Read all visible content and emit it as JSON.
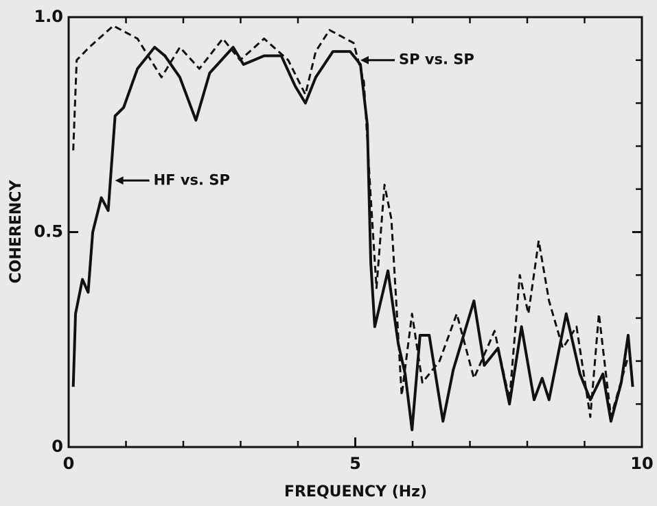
{
  "chart_data": {
    "type": "line",
    "xlabel": "FREQUENCY (Hz)",
    "ylabel": "COHERENCY",
    "xlim": [
      0,
      10
    ],
    "ylim": [
      0,
      1
    ],
    "xticks": [
      0,
      5,
      10
    ],
    "yticks": [
      0,
      0.5,
      {
        "value": 1,
        "label": "1.0"
      }
    ],
    "xminorticks": [
      1,
      2,
      3,
      4,
      6,
      7,
      8,
      9
    ],
    "yminorticks": [
      0.1,
      0.2,
      0.3,
      0.4,
      0.6,
      0.7,
      0.8,
      0.9
    ],
    "series": [
      {
        "name": "HF vs. SP",
        "color": "#111111",
        "dash": "solid",
        "x": [
          0.08,
          0.12,
          0.24,
          0.34,
          0.42,
          0.57,
          0.69,
          0.81,
          0.96,
          1.2,
          1.5,
          1.68,
          1.94,
          2.22,
          2.46,
          2.87,
          3.05,
          3.41,
          3.71,
          3.95,
          4.13,
          4.31,
          4.61,
          4.91,
          5.09,
          5.21,
          5.27,
          5.34,
          5.57,
          5.75,
          5.87,
          5.99,
          6.13,
          6.29,
          6.53,
          6.71,
          7.07,
          7.25,
          7.49,
          7.69,
          7.9,
          8.12,
          8.26,
          8.38,
          8.68,
          8.92,
          9.1,
          9.32,
          9.46,
          9.64,
          9.76,
          9.84
        ],
        "values": [
          0.14,
          0.31,
          0.39,
          0.36,
          0.5,
          0.58,
          0.55,
          0.77,
          0.79,
          0.88,
          0.93,
          0.91,
          0.86,
          0.76,
          0.87,
          0.93,
          0.89,
          0.91,
          0.91,
          0.84,
          0.8,
          0.86,
          0.92,
          0.92,
          0.89,
          0.75,
          0.43,
          0.28,
          0.41,
          0.24,
          0.17,
          0.04,
          0.26,
          0.26,
          0.06,
          0.18,
          0.34,
          0.19,
          0.23,
          0.1,
          0.28,
          0.11,
          0.16,
          0.11,
          0.31,
          0.17,
          0.11,
          0.17,
          0.06,
          0.15,
          0.26,
          0.14
        ]
      },
      {
        "name": "SP vs. SP",
        "color": "#111111",
        "dash": "dashed",
        "x": [
          0.08,
          0.14,
          0.36,
          0.78,
          1.2,
          1.62,
          1.94,
          2.28,
          2.69,
          2.99,
          3.41,
          3.83,
          4.13,
          4.31,
          4.55,
          4.97,
          5.15,
          5.27,
          5.37,
          5.51,
          5.63,
          5.81,
          5.99,
          6.17,
          6.47,
          6.77,
          7.07,
          7.43,
          7.69,
          7.87,
          8.02,
          8.2,
          8.38,
          8.62,
          8.86,
          9.1,
          9.25,
          9.46,
          9.76
        ],
        "values": [
          0.69,
          0.9,
          0.93,
          0.98,
          0.95,
          0.86,
          0.93,
          0.88,
          0.95,
          0.9,
          0.95,
          0.9,
          0.82,
          0.92,
          0.97,
          0.94,
          0.85,
          0.58,
          0.37,
          0.61,
          0.53,
          0.12,
          0.31,
          0.15,
          0.2,
          0.31,
          0.16,
          0.27,
          0.11,
          0.4,
          0.31,
          0.48,
          0.34,
          0.23,
          0.28,
          0.07,
          0.31,
          0.07,
          0.21
        ]
      }
    ],
    "annotations": [
      {
        "series": 0,
        "x": 0.81,
        "y": 0.62
      },
      {
        "series": 1,
        "x": 5.09,
        "y": 0.9
      }
    ]
  }
}
